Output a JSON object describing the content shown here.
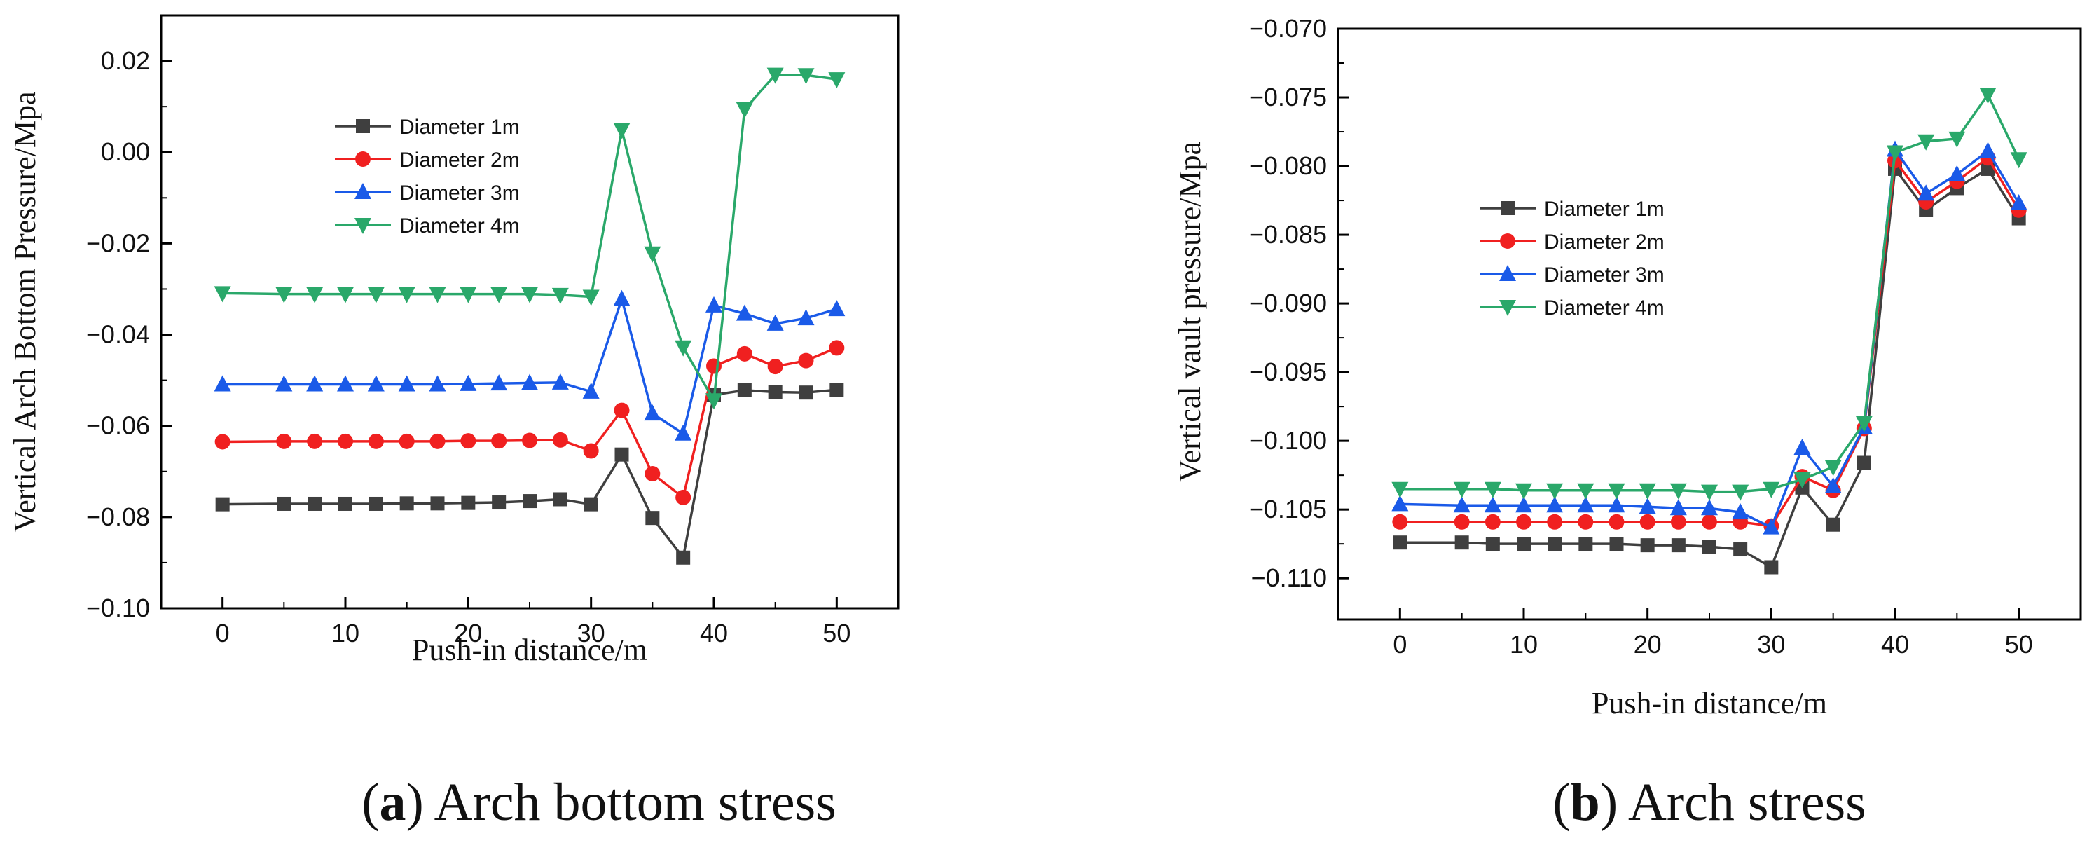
{
  "chart_data": [
    {
      "type": "line",
      "id": "a",
      "caption_letter": "a",
      "caption_rest": ") Arch bottom stress",
      "caption_open": "(",
      "xlabel": "Push-in distance/m",
      "ylabel": "Vertical Arch Bottom Pressure/Mpa",
      "xlim": [
        -5,
        55
      ],
      "ylim": [
        -0.1,
        0.03
      ],
      "xticks": [
        0,
        10,
        20,
        30,
        40,
        50
      ],
      "yticks": [
        -0.1,
        -0.08,
        -0.06,
        -0.04,
        -0.02,
        0.0,
        0.02
      ],
      "ytick_labels": [
        "−0.10",
        "−0.08",
        "−0.06",
        "−0.04",
        "−0.02",
        "0.00",
        "0.02"
      ],
      "legend_position": "upper-left",
      "x": [
        0,
        5,
        7.5,
        10,
        12.5,
        15,
        17.5,
        20,
        22.5,
        25,
        27.5,
        30,
        32.5,
        35,
        37.5,
        40,
        42.5,
        45,
        47.5,
        50
      ],
      "series": [
        {
          "name": "Diameter 1m",
          "color": "#3f3f3f",
          "marker": "square",
          "values": [
            -0.0772,
            -0.0771,
            -0.0771,
            -0.0771,
            -0.0771,
            -0.077,
            -0.077,
            -0.0769,
            -0.0768,
            -0.0765,
            -0.0761,
            -0.0772,
            -0.0663,
            -0.0802,
            -0.0889,
            -0.0532,
            -0.0522,
            -0.0526,
            -0.0527,
            -0.0521
          ]
        },
        {
          "name": "Diameter 2m",
          "color": "#f02020",
          "marker": "circle",
          "values": [
            -0.0635,
            -0.0634,
            -0.0634,
            -0.0634,
            -0.0634,
            -0.0634,
            -0.0634,
            -0.0633,
            -0.0633,
            -0.0632,
            -0.0631,
            -0.0655,
            -0.0566,
            -0.0705,
            -0.0757,
            -0.0469,
            -0.0442,
            -0.047,
            -0.0457,
            -0.0429
          ]
        },
        {
          "name": "Diameter 3m",
          "color": "#1a5ae8",
          "marker": "triangle-up",
          "values": [
            -0.0509,
            -0.0509,
            -0.0509,
            -0.0509,
            -0.0509,
            -0.0509,
            -0.0509,
            -0.0508,
            -0.0507,
            -0.0506,
            -0.0505,
            -0.0525,
            -0.0322,
            -0.0573,
            -0.0617,
            -0.0336,
            -0.0354,
            -0.0376,
            -0.0364,
            -0.0344
          ]
        },
        {
          "name": "Diameter 4m",
          "color": "#2aa86a",
          "marker": "triangle-down",
          "values": [
            -0.0309,
            -0.0311,
            -0.0311,
            -0.0311,
            -0.0311,
            -0.0311,
            -0.0311,
            -0.0311,
            -0.0311,
            -0.0311,
            -0.0313,
            -0.0317,
            0.0049,
            -0.0222,
            -0.0428,
            -0.0544,
            0.0094,
            0.017,
            0.0169,
            0.016
          ]
        }
      ]
    },
    {
      "type": "line",
      "id": "b",
      "caption_letter": "b",
      "caption_rest": ") Arch stress",
      "caption_open": "(",
      "xlabel": "Push-in distance/m",
      "ylabel": "Vertical vault pressure/Mpa",
      "xlim": [
        -5,
        55
      ],
      "ylim": [
        -0.113,
        -0.07
      ],
      "xticks": [
        0,
        10,
        20,
        30,
        40,
        50
      ],
      "yticks": [
        -0.11,
        -0.105,
        -0.1,
        -0.095,
        -0.09,
        -0.085,
        -0.08,
        -0.075,
        -0.07
      ],
      "ytick_labels": [
        "−0.110",
        "−0.105",
        "−0.100",
        "−0.095",
        "−0.090",
        "−0.085",
        "−0.080",
        "−0.075",
        "−0.070"
      ],
      "legend_position": "middle-left",
      "x": [
        0,
        5,
        7.5,
        10,
        12.5,
        15,
        17.5,
        20,
        22.5,
        25,
        27.5,
        30,
        32.5,
        35,
        37.5,
        40,
        42.5,
        45,
        47.5,
        50
      ],
      "series": [
        {
          "name": "Diameter 1m",
          "color": "#3f3f3f",
          "marker": "square",
          "values": [
            -0.1074,
            -0.1074,
            -0.1075,
            -0.1075,
            -0.1075,
            -0.1075,
            -0.1075,
            -0.1076,
            -0.1076,
            -0.1077,
            -0.1079,
            -0.1092,
            -0.1034,
            -0.1061,
            -0.1016,
            -0.0802,
            -0.0832,
            -0.0816,
            -0.0802,
            -0.0838
          ]
        },
        {
          "name": "Diameter 2m",
          "color": "#f02020",
          "marker": "circle",
          "values": [
            -0.1059,
            -0.1059,
            -0.1059,
            -0.1059,
            -0.1059,
            -0.1059,
            -0.1059,
            -0.1059,
            -0.1059,
            -0.1059,
            -0.1059,
            -0.1062,
            -0.1026,
            -0.1036,
            -0.0991,
            -0.0796,
            -0.0826,
            -0.0811,
            -0.0794,
            -0.0832
          ]
        },
        {
          "name": "Diameter 3m",
          "color": "#1a5ae8",
          "marker": "triangle-up",
          "values": [
            -0.1046,
            -0.1047,
            -0.1047,
            -0.1047,
            -0.1047,
            -0.1047,
            -0.1047,
            -0.1048,
            -0.1049,
            -0.1049,
            -0.1052,
            -0.1063,
            -0.1005,
            -0.1033,
            -0.099,
            -0.0788,
            -0.082,
            -0.0806,
            -0.0789,
            -0.0827
          ]
        },
        {
          "name": "Diameter 4m",
          "color": "#2aa86a",
          "marker": "triangle-down",
          "values": [
            -0.1035,
            -0.1035,
            -0.1035,
            -0.1036,
            -0.1036,
            -0.1036,
            -0.1036,
            -0.1036,
            -0.1036,
            -0.1037,
            -0.1037,
            -0.1035,
            -0.1028,
            -0.1019,
            -0.0987,
            -0.079,
            -0.0782,
            -0.078,
            -0.0748,
            -0.0795
          ]
        }
      ]
    }
  ]
}
